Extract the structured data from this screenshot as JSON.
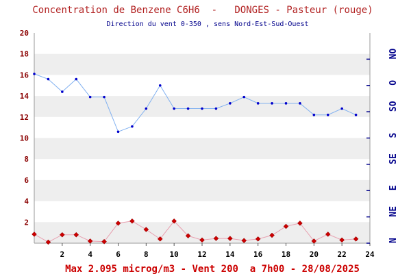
{
  "chart_data": {
    "type": "line",
    "title": "Concentration de Benzene C6H6  -   DONGES - Pasteur (rouge)",
    "subtitle": "Direction du vent 0-350 , sens Nord-Est-Sud-Ouest",
    "footer": "Max 2.095 microg/m3 - Vent 200  a 7h00 - 28/08/2025",
    "xlim": [
      0,
      24
    ],
    "ylim": [
      0,
      20
    ],
    "x_ticks": [
      "2",
      "4",
      "6",
      "8",
      "10",
      "12",
      "14",
      "16",
      "18",
      "20",
      "22",
      "24"
    ],
    "y_ticks": [
      "2",
      "4",
      "6",
      "8",
      "10",
      "12",
      "14",
      "16",
      "18",
      "20"
    ],
    "y2_ticks": [
      "N",
      "NE",
      "E",
      "SE",
      "S",
      "SO",
      "O",
      "NO"
    ],
    "y2_range_degrees": [
      0,
      350
    ],
    "grid": "alternating horizontal bands",
    "colors": {
      "concentration_line": "#e8a0b0",
      "concentration_marker": "#cc0000",
      "wind_line": "#80b0f0",
      "wind_marker": "#0000cc",
      "band": "#eeeeee",
      "ytick": "#8b0000",
      "dirtick": "#00008b",
      "footer": "#cc0000"
    },
    "series": [
      {
        "x": [
          0,
          1,
          2,
          3,
          4,
          5,
          6,
          7,
          8,
          9,
          10,
          11,
          12,
          13,
          14,
          15,
          16,
          17,
          18,
          19,
          20,
          21,
          22,
          23
        ],
        "values": [
          0.85,
          0.1,
          0.8,
          0.8,
          0.2,
          0.15,
          1.9,
          2.1,
          1.3,
          0.4,
          2.1,
          0.7,
          0.3,
          0.45,
          0.45,
          0.25,
          0.4,
          0.75,
          1.6,
          1.9,
          0.2,
          0.85,
          0.3,
          0.4
        ]
      },
      {
        "x": [
          0,
          1,
          2,
          3,
          4,
          5,
          6,
          7,
          8,
          9,
          10,
          11,
          12,
          13,
          14,
          15,
          16,
          17,
          18,
          19,
          20,
          21,
          22,
          23
        ],
        "values": [
          16.1,
          15.6,
          14.4,
          15.6,
          13.9,
          13.9,
          10.6,
          11.1,
          12.8,
          15.0,
          12.8,
          12.8,
          12.8,
          12.8,
          13.3,
          13.9,
          13.3,
          13.3,
          13.3,
          13.3,
          12.2,
          12.2,
          12.8,
          12.2
        ]
      }
    ]
  }
}
